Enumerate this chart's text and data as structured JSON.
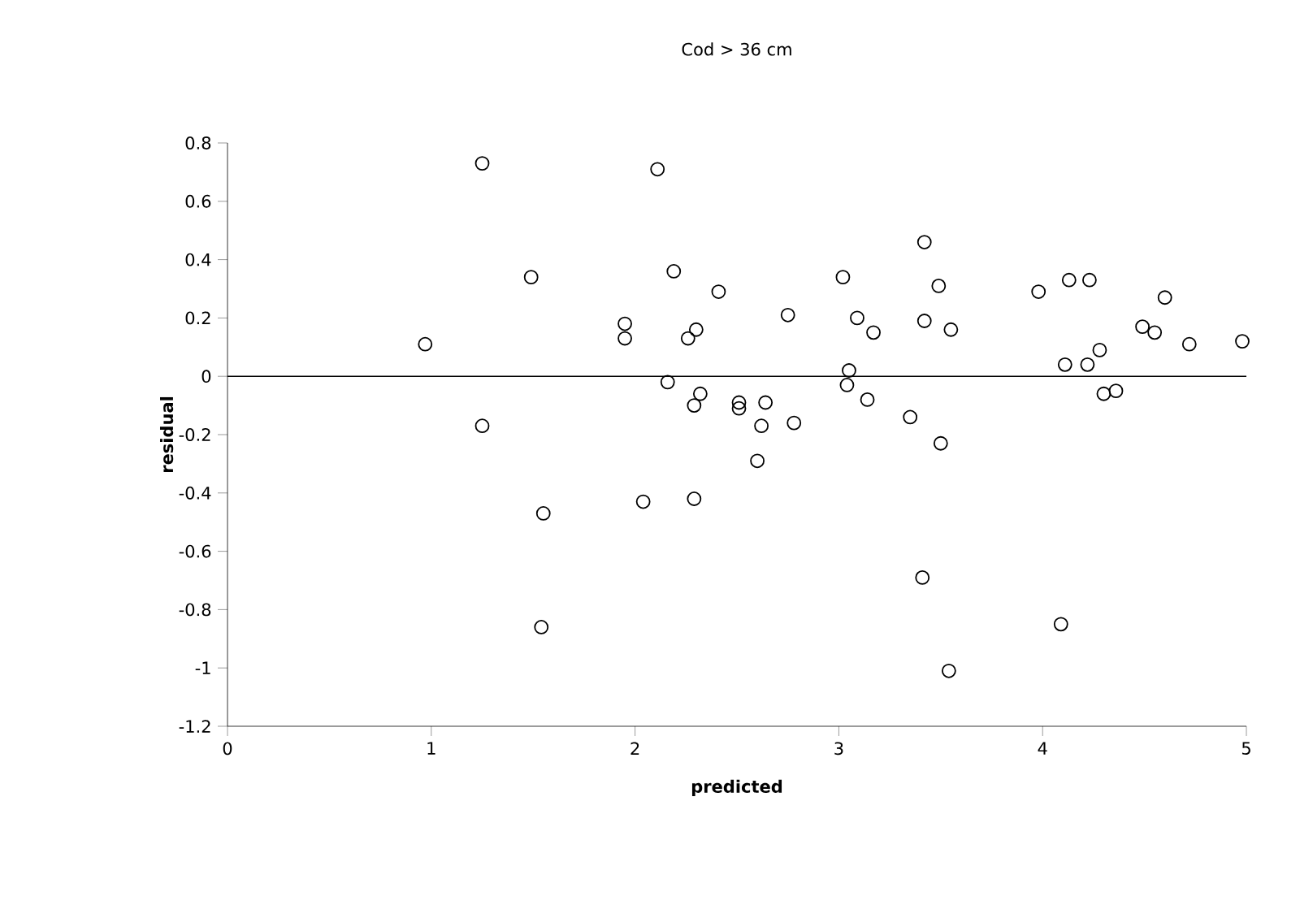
{
  "chart_data": {
    "type": "scatter",
    "title": "Cod > 36 cm",
    "xlabel": "predicted",
    "ylabel": "residual",
    "xlim": [
      0,
      5
    ],
    "ylim": [
      -1.2,
      0.8
    ],
    "xticks": [
      0,
      1,
      2,
      3,
      4,
      5
    ],
    "yticks": [
      -1.2,
      -1,
      -0.8,
      -0.6,
      -0.4,
      -0.2,
      0,
      0.2,
      0.4,
      0.6,
      0.8
    ],
    "marker": "circle",
    "ref_lines": [
      {
        "axis": "y",
        "value": 0,
        "color": "#000000"
      }
    ],
    "series": [
      {
        "color": "#000000",
        "x": [
          0.97,
          1.25,
          1.25,
          1.49,
          1.55,
          1.54,
          1.95,
          1.95,
          2.11,
          2.19,
          2.16,
          2.04,
          2.26,
          2.3,
          2.29,
          2.32,
          2.29,
          2.41,
          2.51,
          2.51,
          2.64,
          2.62,
          2.6,
          2.78,
          2.75,
          3.02,
          3.05,
          3.04,
          3.09,
          3.17,
          3.14,
          3.35,
          3.42,
          3.42,
          3.41,
          3.49,
          3.5,
          3.55,
          3.54,
          3.98,
          4.13,
          4.23,
          4.6,
          4.49,
          4.55,
          4.72,
          4.98,
          4.11,
          4.22,
          4.28,
          4.3,
          4.36,
          4.09
        ],
        "values": [
          0.11,
          0.73,
          -0.17,
          0.34,
          -0.47,
          -0.86,
          0.18,
          0.13,
          0.71,
          0.36,
          -0.02,
          -0.43,
          0.13,
          0.16,
          -0.1,
          -0.06,
          -0.42,
          0.29,
          -0.09,
          -0.11,
          -0.09,
          -0.17,
          -0.29,
          -0.16,
          0.21,
          0.34,
          0.02,
          -0.03,
          0.2,
          0.15,
          -0.08,
          -0.14,
          0.46,
          0.19,
          -0.69,
          0.31,
          -0.23,
          0.16,
          -1.01,
          0.29,
          0.33,
          0.33,
          0.27,
          0.17,
          0.15,
          0.11,
          0.12,
          0.04,
          0.04,
          0.09,
          -0.06,
          -0.05,
          -0.85
        ]
      }
    ]
  }
}
